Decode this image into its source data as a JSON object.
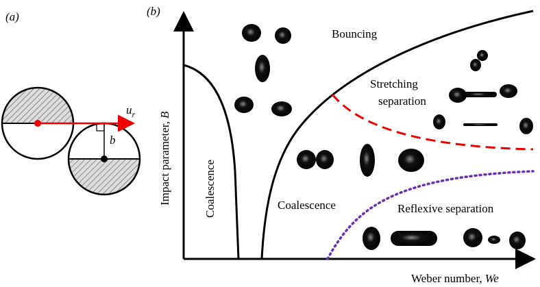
{
  "panels": {
    "a": "(a)",
    "b": "(b)"
  },
  "schematic": {
    "velocity_symbol": "u",
    "velocity_subscript": "r",
    "offset_symbol": "b"
  },
  "regime_map": {
    "x_axis_label": "Weber number,",
    "x_axis_symbol": "We",
    "y_axis_label": "Impact parameter,",
    "y_axis_symbol": "B",
    "regions": {
      "bouncing": "Bouncing",
      "stretching": [
        "Stretching",
        "separation"
      ],
      "coalescence_low": "Coalescence",
      "coalescence_mid": "Coalescence",
      "reflexive": "Reflexive separation"
    }
  }
}
